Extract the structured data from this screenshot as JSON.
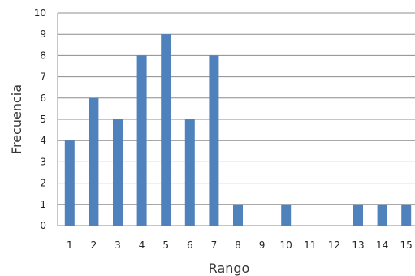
{
  "chart_data": {
    "type": "bar",
    "title": "",
    "xlabel": "Rango",
    "ylabel": "Frecuencia",
    "categories": [
      "1",
      "2",
      "3",
      "4",
      "5",
      "6",
      "7",
      "8",
      "9",
      "10",
      "11",
      "12",
      "13",
      "14",
      "15"
    ],
    "values": [
      4,
      6,
      5,
      8,
      9,
      5,
      8,
      1,
      0,
      1,
      0,
      0,
      1,
      1,
      1
    ],
    "ylim": [
      0,
      10
    ],
    "yticks": [
      "0",
      "1",
      "2",
      "3",
      "4",
      "5",
      "6",
      "7",
      "8",
      "9",
      "10"
    ],
    "grid": true,
    "bar_color": "#4F81BD",
    "grid_color": "#8C8C8C"
  }
}
